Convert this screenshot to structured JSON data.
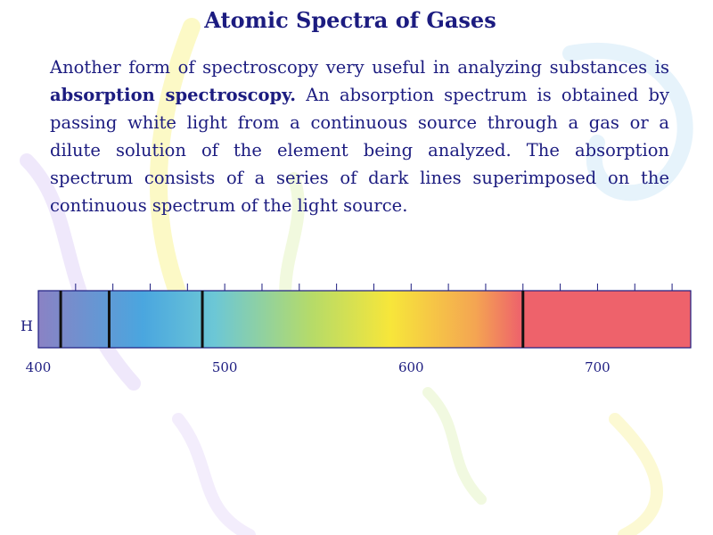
{
  "title": "Atomic Spectra of Gases",
  "paragraph": {
    "intro": "Another form of spectroscopy very useful in analyzing substances is ",
    "term": "absorption spectroscopy.",
    "rest": " An absorption spectrum is obtained by passing white light from a continuous source through a gas or a dilute solution of the element being analyzed. The absorption spectrum consists of a series of dark lines superimposed on the continuous spectrum of the light source."
  },
  "figure": {
    "element_label": "H",
    "axis_min": 400,
    "axis_max": 750,
    "tick_step": 20,
    "tick_labels": [
      "400",
      "500",
      "600",
      "700"
    ],
    "tick_label_values": [
      400,
      500,
      600,
      700
    ],
    "absorption_lines": [
      412,
      438,
      488,
      660
    ],
    "colors": {
      "text": "#1c1c80",
      "violet": "#8a82c4",
      "blue": "#4aa6df",
      "cyan": "#6cc7d6",
      "green": "#b6db68",
      "yellow": "#f7e63a",
      "orange": "#f4a552",
      "red": "#ee626b"
    }
  }
}
